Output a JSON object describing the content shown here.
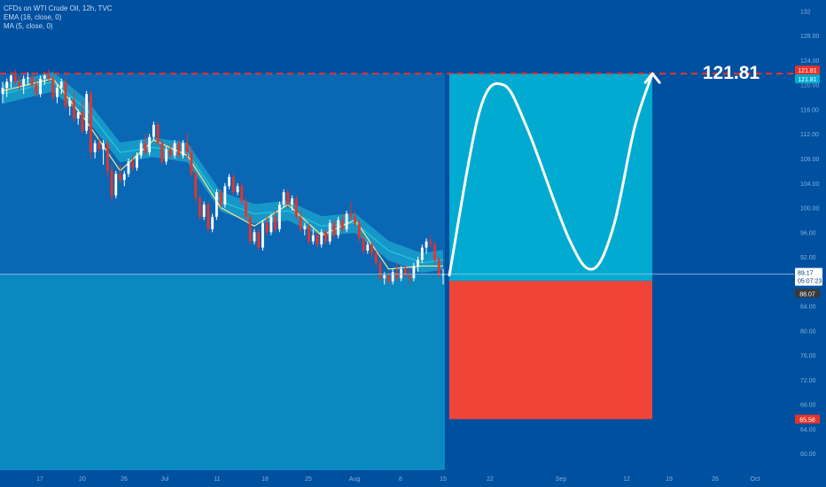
{
  "colors": {
    "background": "#0050a0",
    "plot_bg": "#0a67b4",
    "history_fill": "#0a88c0",
    "target_box": "#00aad0",
    "stop_box": "#f04438",
    "up_candle": "#ffffff",
    "down_candle": "#e8332a",
    "ema_band": "#20c0d8",
    "ma_line": "#f5e98a",
    "target_line": "#e8332a",
    "price_line": "#9ec8ea",
    "axis_text": "#7fb0dd",
    "path": "#ffffff"
  },
  "legend": {
    "line1": "CFDs on WTI Crude Oil, 12h, TVC",
    "line2": "EMA (16, close, 0)",
    "line3": "MA (5, close, 0)"
  },
  "annotation": {
    "target_text": "121.81"
  },
  "price_axis": {
    "ticks": [
      "132",
      "128.00",
      "124.00",
      "120.00",
      "116.00",
      "112.00",
      "108.00",
      "104.00",
      "100.00",
      "96.00",
      "92.00",
      "88.00",
      "84.00",
      "80.00",
      "76.00",
      "72.00",
      "68.00",
      "64.00",
      "60.00"
    ],
    "labels": {
      "target_red": "121.81",
      "target_blue": "121.81",
      "current_price": "89.17",
      "countdown": "05:07:23",
      "last_close": "88.07",
      "stop": "65.58"
    }
  },
  "time_axis": {
    "ticks": [
      "17",
      "20",
      "26",
      "Jul",
      "11",
      "18",
      "25",
      "Aug",
      "8",
      "15",
      "22",
      "Sep",
      "12",
      "19",
      "26",
      "Oct"
    ]
  },
  "chart_data": {
    "type": "candlestick",
    "title": "CFDs on WTI Crude Oil, 12h, TVC",
    "ylim": [
      59,
      132.5
    ],
    "y_ticks": [
      132,
      128,
      124,
      120,
      116,
      112,
      108,
      104,
      100,
      96,
      92,
      88,
      84,
      80,
      76,
      72,
      68,
      64,
      60
    ],
    "x_ticks": [
      "17",
      "20",
      "26",
      "Jul",
      "11",
      "18",
      "25",
      "Aug",
      "8",
      "15",
      "22",
      "Sep",
      "12",
      "19",
      "26",
      "Oct"
    ],
    "series": [
      {
        "name": "CFDs on WTI Crude Oil",
        "candles": [
          [
            118.5,
            120.5,
            117,
            119.5
          ],
          [
            119.5,
            121,
            118,
            120.5
          ],
          [
            120.5,
            122,
            119.5,
            121.5
          ],
          [
            121.5,
            122.5,
            120,
            120.5
          ],
          [
            120.5,
            121.5,
            119,
            119.8
          ],
          [
            119.8,
            121.5,
            118.5,
            121
          ],
          [
            121,
            122,
            120,
            121.2
          ],
          [
            121.2,
            122,
            119.5,
            120
          ],
          [
            120,
            121,
            118,
            118.5
          ],
          [
            118.5,
            121.5,
            118,
            121
          ],
          [
            121,
            122,
            120,
            121.5
          ],
          [
            121.5,
            122.5,
            120.5,
            121
          ],
          [
            121,
            121.5,
            117.5,
            118
          ],
          [
            118,
            120,
            117,
            119.5
          ],
          [
            119.5,
            121,
            118.5,
            120.5
          ],
          [
            120.5,
            121,
            116,
            116.5
          ],
          [
            116.5,
            118,
            115,
            117.5
          ],
          [
            117.5,
            119,
            114,
            114.5
          ],
          [
            114.5,
            116,
            113.5,
            115.5
          ],
          [
            115.5,
            117.5,
            112,
            112.5
          ],
          [
            112.5,
            119,
            112,
            118.5
          ],
          [
            118.5,
            119,
            108,
            109
          ],
          [
            109,
            111,
            108,
            110.5
          ],
          [
            110.5,
            111.5,
            109,
            109.5
          ],
          [
            109.5,
            111,
            107,
            110.5
          ],
          [
            110.5,
            111,
            105,
            106
          ],
          [
            106,
            107,
            101,
            102
          ],
          [
            102,
            106,
            101.5,
            105.5
          ],
          [
            105.5,
            107,
            104,
            104.5
          ],
          [
            104.5,
            106,
            103.5,
            105.5
          ],
          [
            105.5,
            108,
            105,
            107.5
          ],
          [
            107.5,
            108.5,
            106,
            106.5
          ],
          [
            106.5,
            109,
            106,
            108.5
          ],
          [
            108.5,
            111,
            108,
            110.5
          ],
          [
            110.5,
            112,
            108.5,
            109
          ],
          [
            109,
            112,
            108.5,
            111.5
          ],
          [
            111.5,
            114,
            111,
            113.5
          ],
          [
            113.5,
            114,
            110,
            110.5
          ],
          [
            110.5,
            111,
            107,
            107.5
          ],
          [
            107.5,
            110,
            107,
            109.5
          ],
          [
            109.5,
            110.5,
            108,
            108.5
          ],
          [
            108.5,
            111,
            108,
            110.5
          ],
          [
            110.5,
            111,
            108,
            108.5
          ],
          [
            108.5,
            111,
            108,
            110.5
          ],
          [
            110.5,
            112,
            108,
            109
          ],
          [
            109,
            110,
            105,
            105.5
          ],
          [
            105.5,
            106,
            101,
            101.5
          ],
          [
            101.5,
            102,
            98,
            98.5
          ],
          [
            98.5,
            101,
            98,
            100.5
          ],
          [
            100.5,
            101,
            96,
            96.5
          ],
          [
            96.5,
            99,
            96,
            98.5
          ],
          [
            98.5,
            103,
            98,
            102.5
          ],
          [
            102.5,
            103,
            100,
            100.5
          ],
          [
            100.5,
            104,
            100,
            103.5
          ],
          [
            103.5,
            105.5,
            103,
            105
          ],
          [
            105,
            105.5,
            102,
            102.5
          ],
          [
            102.5,
            104,
            102,
            103.5
          ],
          [
            103.5,
            104,
            100.5,
            101
          ],
          [
            101,
            101.5,
            98,
            98.5
          ],
          [
            98.5,
            99,
            94,
            94.5
          ],
          [
            94.5,
            96.5,
            94,
            96
          ],
          [
            96,
            96.5,
            93,
            93.5
          ],
          [
            93.5,
            98,
            93,
            97.5
          ],
          [
            97.5,
            98.5,
            95.5,
            96
          ],
          [
            96,
            99,
            95.5,
            98.5
          ],
          [
            98.5,
            99.5,
            96,
            96.5
          ],
          [
            96.5,
            101,
            96,
            100.5
          ],
          [
            100.5,
            103,
            100,
            102.5
          ],
          [
            102.5,
            103,
            100,
            100.5
          ],
          [
            100.5,
            102,
            99.5,
            101.5
          ],
          [
            101.5,
            102,
            98,
            98.5
          ],
          [
            98.5,
            99.5,
            96,
            96.5
          ],
          [
            96.5,
            97.5,
            95.5,
            97
          ],
          [
            97,
            97.5,
            94,
            94.5
          ],
          [
            94.5,
            96.5,
            94,
            95.5
          ],
          [
            95.5,
            96,
            93.5,
            94
          ],
          [
            94,
            96.5,
            93.5,
            96
          ],
          [
            96,
            96.5,
            94,
            94.5
          ],
          [
            94.5,
            98,
            94,
            97.5
          ],
          [
            97.5,
            98,
            95,
            95.5
          ],
          [
            95.5,
            98.5,
            95,
            98
          ],
          [
            98,
            99,
            96,
            96.5
          ],
          [
            96.5,
            99.5,
            96,
            99
          ],
          [
            99,
            101,
            98,
            98.5
          ],
          [
            98.5,
            99.5,
            97,
            97.5
          ],
          [
            97.5,
            98,
            94.5,
            95
          ],
          [
            95,
            95.5,
            92.5,
            93
          ],
          [
            93,
            94.5,
            92.5,
            94
          ],
          [
            94,
            94.5,
            92,
            92.5
          ],
          [
            92.5,
            93,
            90.5,
            91
          ],
          [
            91,
            91.5,
            88,
            88.5
          ],
          [
            88.5,
            89.5,
            87.5,
            89
          ],
          [
            89,
            89.5,
            87.5,
            88
          ],
          [
            88,
            90,
            87.5,
            89.5
          ],
          [
            89.5,
            91,
            88,
            88.5
          ],
          [
            88.5,
            90.5,
            88,
            90
          ],
          [
            90,
            90.5,
            88.5,
            89
          ],
          [
            89,
            90,
            87.5,
            88.5
          ],
          [
            88.5,
            91,
            88,
            90.5
          ],
          [
            90.5,
            92,
            89.5,
            91.5
          ],
          [
            91.5,
            94,
            91,
            93.5
          ],
          [
            93.5,
            95,
            92.5,
            94.5
          ],
          [
            94.5,
            95.5,
            93.5,
            94
          ],
          [
            94,
            94.5,
            91,
            91.5
          ],
          [
            91.5,
            92,
            88.5,
            89
          ],
          [
            89,
            90,
            87.5,
            89.17
          ]
        ]
      },
      {
        "name": "EMA (16, close, 0)",
        "points": [
          [
            0,
            118.5
          ],
          [
            12,
            120.5
          ],
          [
            20,
            116
          ],
          [
            28,
            109
          ],
          [
            36,
            109.8
          ],
          [
            44,
            109
          ],
          [
            52,
            101
          ],
          [
            60,
            99
          ],
          [
            68,
            99.5
          ],
          [
            76,
            97
          ],
          [
            84,
            97.5
          ],
          [
            92,
            93
          ],
          [
            100,
            91
          ],
          [
            105,
            91.5
          ]
        ]
      },
      {
        "name": "MA (5, close, 0)",
        "points": [
          [
            0,
            119
          ],
          [
            12,
            121
          ],
          [
            20,
            114
          ],
          [
            28,
            106
          ],
          [
            36,
            111
          ],
          [
            44,
            108.5
          ],
          [
            52,
            100
          ],
          [
            60,
            97
          ],
          [
            68,
            100.5
          ],
          [
            76,
            95.5
          ],
          [
            84,
            98
          ],
          [
            92,
            90
          ],
          [
            100,
            90.5
          ],
          [
            105,
            90.5
          ]
        ]
      }
    ],
    "price_lines": {
      "target": 121.81,
      "current": 89.17,
      "last_close": 88.07,
      "stop": 65.58
    },
    "target_box": {
      "top": 121.81,
      "bottom": 88.07
    },
    "stop_box": {
      "top": 88.07,
      "bottom": 65.58
    },
    "projected_path": [
      [
        0,
        89
      ],
      [
        10,
        115.5
      ],
      [
        18,
        120
      ],
      [
        26,
        113
      ],
      [
        40,
        95
      ],
      [
        48,
        90
      ],
      [
        55,
        97
      ],
      [
        62,
        113
      ],
      [
        68,
        121.81
      ]
    ],
    "annotation": "121.81"
  }
}
